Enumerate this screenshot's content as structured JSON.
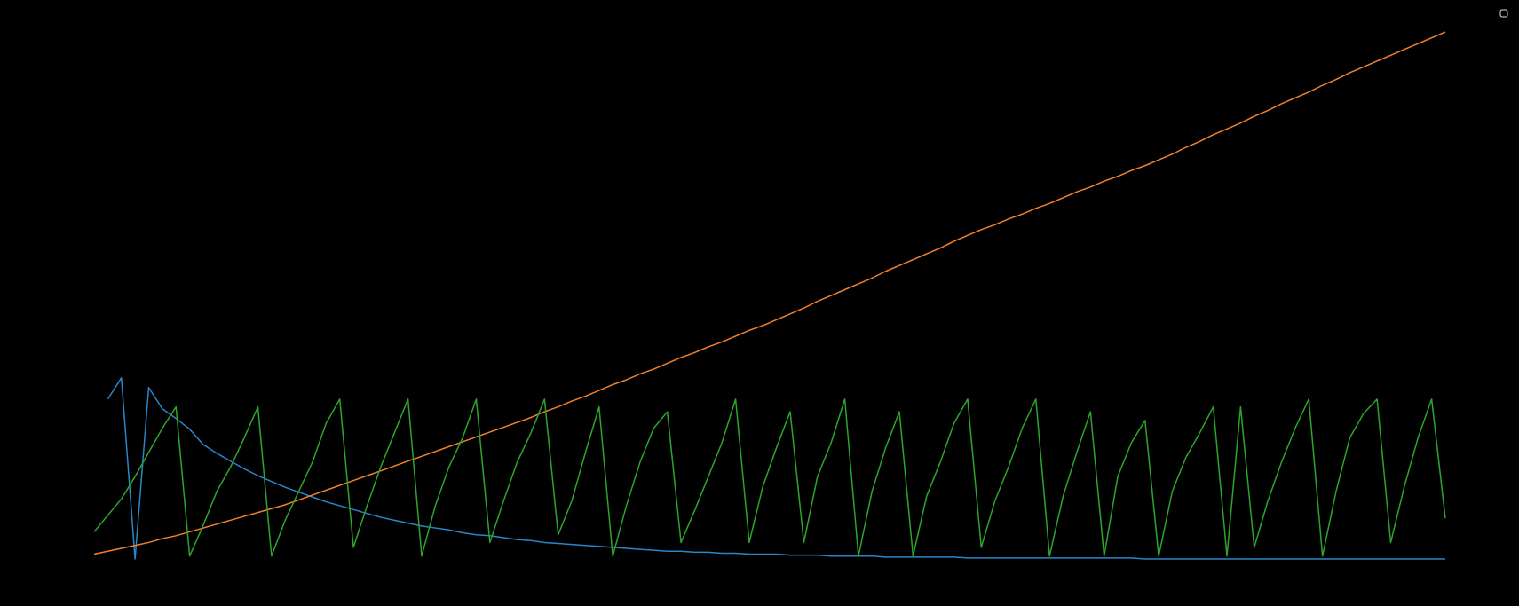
{
  "chart_data": {
    "type": "line",
    "ylim": [
      0,
      545
    ],
    "series": [
      {
        "color": "#2b86c8",
        "values": [
          null,
          165,
          187,
          0,
          177,
          155,
          145,
          134,
          118,
          109,
          101,
          93,
          86,
          80,
          74,
          69,
          64,
          59,
          55,
          51,
          47,
          43,
          40,
          37,
          34,
          32,
          30,
          27,
          25,
          24,
          22,
          20,
          19,
          17,
          16,
          15,
          14,
          13,
          12,
          11,
          10,
          9,
          8,
          8,
          7,
          7,
          6,
          6,
          5,
          5,
          5,
          4,
          4,
          4,
          3,
          3,
          3,
          3,
          2,
          2,
          2,
          2,
          2,
          2,
          1,
          1,
          1,
          1,
          1,
          1,
          1,
          1,
          1,
          1,
          1,
          1,
          1,
          0,
          0,
          0,
          0,
          0,
          0,
          0,
          0,
          0,
          0,
          0,
          0,
          0,
          0,
          0,
          0,
          0,
          0,
          0,
          0,
          0,
          0,
          0
        ]
      },
      {
        "color": "#f0802b",
        "values": [
          5,
          8,
          11,
          14,
          17,
          21,
          24,
          28,
          32,
          36,
          40,
          44,
          48,
          52,
          56,
          61,
          66,
          71,
          76,
          81,
          86,
          91,
          96,
          101,
          106,
          111,
          116,
          121,
          126,
          131,
          136,
          141,
          146,
          152,
          157,
          163,
          168,
          174,
          180,
          185,
          191,
          196,
          202,
          208,
          213,
          219,
          224,
          230,
          236,
          241,
          247,
          253,
          259,
          266,
          272,
          278,
          284,
          290,
          297,
          303,
          309,
          315,
          321,
          328,
          334,
          340,
          345,
          351,
          356,
          362,
          367,
          373,
          379,
          384,
          390,
          395,
          401,
          406,
          412,
          418,
          425,
          431,
          438,
          444,
          450,
          457,
          463,
          470,
          476,
          482,
          489,
          495,
          502,
          508,
          514,
          520,
          526,
          532,
          538,
          544
        ]
      },
      {
        "color": "#2ca52c",
        "values": [
          28,
          45,
          62,
          85,
          110,
          135,
          157,
          3,
          35,
          70,
          95,
          125,
          157,
          3,
          40,
          70,
          100,
          140,
          165,
          12,
          55,
          95,
          130,
          165,
          3,
          55,
          95,
          125,
          165,
          17,
          60,
          100,
          130,
          165,
          25,
          60,
          110,
          157,
          3,
          55,
          100,
          135,
          152,
          17,
          50,
          85,
          120,
          165,
          17,
          75,
          115,
          152,
          17,
          85,
          120,
          165,
          3,
          70,
          115,
          152,
          3,
          65,
          100,
          140,
          165,
          12,
          60,
          95,
          135,
          165,
          3,
          65,
          110,
          152,
          3,
          85,
          120,
          143,
          3,
          70,
          105,
          130,
          157,
          3,
          157,
          12,
          60,
          100,
          135,
          165,
          3,
          70,
          125,
          150,
          165,
          17,
          75,
          125,
          165,
          42
        ]
      }
    ]
  }
}
